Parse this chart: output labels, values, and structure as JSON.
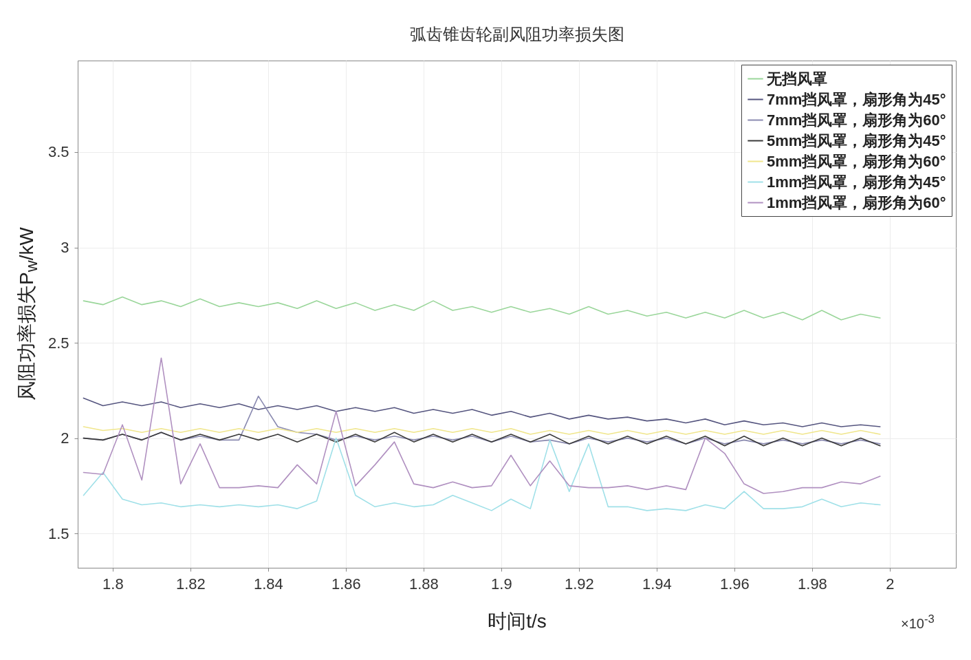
{
  "chart_data": {
    "type": "line",
    "title": "弧齿锥齿轮副风阻功率损失图",
    "xlabel": "时间t/s",
    "ylabel": "风阻功率损失P$_{w}$/kW",
    "annotations": [
      "×10$^{-3}$"
    ],
    "x": [
      1.7925,
      1.7975,
      1.8025,
      1.8075,
      1.8125,
      1.8175,
      1.8225,
      1.8275,
      1.8325,
      1.8375,
      1.8425,
      1.8475,
      1.8525,
      1.8575,
      1.8625,
      1.8675,
      1.8725,
      1.8775,
      1.8825,
      1.8875,
      1.8925,
      1.8975,
      1.9025,
      1.9075,
      1.9125,
      1.9175,
      1.9225,
      1.9275,
      1.9325,
      1.9375,
      1.9425,
      1.9475,
      1.9525,
      1.9575,
      1.9625,
      1.9675,
      1.9725,
      1.9775,
      1.9825,
      1.9875,
      1.9925,
      1.9975
    ],
    "xlim": [
      1.791,
      2.017
    ],
    "xticks": [
      1.8,
      1.82,
      1.84,
      1.86,
      1.88,
      1.9,
      1.92,
      1.94,
      1.96,
      1.98,
      2
    ],
    "ylim": [
      1.32,
      3.98
    ],
    "yticks": [
      1.5,
      2,
      2.5,
      3,
      3.5
    ],
    "grid": true,
    "legend": "top right",
    "line_style": "solid",
    "series": [
      {
        "name": "无挡风罩",
        "color": "#9ad69a",
        "values": [
          2.72,
          2.7,
          2.74,
          2.7,
          2.72,
          2.69,
          2.73,
          2.69,
          2.71,
          2.69,
          2.71,
          2.68,
          2.72,
          2.68,
          2.71,
          2.67,
          2.7,
          2.67,
          2.72,
          2.67,
          2.69,
          2.66,
          2.69,
          2.66,
          2.68,
          2.65,
          2.69,
          2.65,
          2.67,
          2.64,
          2.66,
          2.63,
          2.66,
          2.63,
          2.67,
          2.63,
          2.66,
          2.62,
          2.67,
          2.62,
          2.65,
          2.63
        ]
      },
      {
        "name": "7mm挡风罩，扇形角为45°",
        "color": "#55557f",
        "values": [
          2.21,
          2.17,
          2.19,
          2.17,
          2.19,
          2.16,
          2.18,
          2.16,
          2.18,
          2.15,
          2.17,
          2.15,
          2.17,
          2.14,
          2.16,
          2.14,
          2.16,
          2.13,
          2.15,
          2.13,
          2.15,
          2.12,
          2.14,
          2.11,
          2.13,
          2.1,
          2.12,
          2.1,
          2.11,
          2.09,
          2.1,
          2.08,
          2.1,
          2.07,
          2.09,
          2.07,
          2.08,
          2.06,
          2.08,
          2.06,
          2.07,
          2.06
        ]
      },
      {
        "name": "7mm挡风罩，扇形角为60°",
        "color": "#8a8ab0",
        "values": [
          2.0,
          1.99,
          2.02,
          1.99,
          2.03,
          1.99,
          2.01,
          1.99,
          1.99,
          2.22,
          2.06,
          2.03,
          2.02,
          1.99,
          2.01,
          1.99,
          2.01,
          1.99,
          2.01,
          1.99,
          2.01,
          1.98,
          2.01,
          1.98,
          1.99,
          1.97,
          2.0,
          1.98,
          2.0,
          1.98,
          2.0,
          1.97,
          2.0,
          1.97,
          1.99,
          1.97,
          1.99,
          1.97,
          1.99,
          1.97,
          1.99,
          1.97
        ]
      },
      {
        "name": "5mm挡风罩，扇形角为45°",
        "color": "#3a3a3a",
        "values": [
          2.0,
          1.99,
          2.02,
          1.99,
          2.03,
          1.99,
          2.02,
          1.99,
          2.02,
          1.99,
          2.02,
          1.98,
          2.02,
          1.98,
          2.02,
          1.98,
          2.03,
          1.98,
          2.02,
          1.98,
          2.02,
          1.98,
          2.02,
          1.98,
          2.02,
          1.97,
          2.01,
          1.97,
          2.01,
          1.97,
          2.01,
          1.97,
          2.01,
          1.96,
          2.01,
          1.96,
          2.0,
          1.96,
          2.0,
          1.96,
          2.0,
          1.96
        ]
      },
      {
        "name": "5mm挡风罩，扇形角为60°",
        "color": "#f0e68c",
        "values": [
          2.06,
          2.04,
          2.05,
          2.03,
          2.05,
          2.03,
          2.05,
          2.03,
          2.05,
          2.03,
          2.05,
          2.03,
          2.05,
          2.03,
          2.05,
          2.03,
          2.05,
          2.03,
          2.05,
          2.03,
          2.05,
          2.03,
          2.05,
          2.02,
          2.04,
          2.02,
          2.04,
          2.02,
          2.04,
          2.02,
          2.04,
          2.02,
          2.04,
          2.02,
          2.04,
          2.02,
          2.04,
          2.02,
          2.04,
          2.02,
          2.04,
          2.02
        ]
      },
      {
        "name": "1mm挡风罩，扇形角为45°",
        "color": "#9fe0e8",
        "values": [
          1.7,
          1.82,
          1.68,
          1.65,
          1.66,
          1.64,
          1.65,
          1.64,
          1.65,
          1.64,
          1.65,
          1.63,
          1.67,
          2.0,
          1.7,
          1.64,
          1.66,
          1.64,
          1.65,
          1.7,
          1.66,
          1.62,
          1.68,
          1.63,
          1.99,
          1.72,
          1.97,
          1.64,
          1.64,
          1.62,
          1.63,
          1.62,
          1.65,
          1.63,
          1.72,
          1.63,
          1.63,
          1.64,
          1.68,
          1.64,
          1.66,
          1.65
        ]
      },
      {
        "name": "1mm挡风罩，扇形角为60°",
        "color": "#b090c0",
        "values": [
          1.82,
          1.81,
          2.07,
          1.78,
          2.42,
          1.76,
          1.97,
          1.74,
          1.74,
          1.75,
          1.74,
          1.86,
          1.76,
          2.14,
          1.75,
          1.86,
          1.98,
          1.76,
          1.74,
          1.77,
          1.74,
          1.75,
          1.91,
          1.75,
          1.88,
          1.75,
          1.74,
          1.74,
          1.75,
          1.73,
          1.75,
          1.73,
          2.0,
          1.92,
          1.76,
          1.71,
          1.72,
          1.74,
          1.74,
          1.77,
          1.76,
          1.8
        ]
      }
    ]
  }
}
